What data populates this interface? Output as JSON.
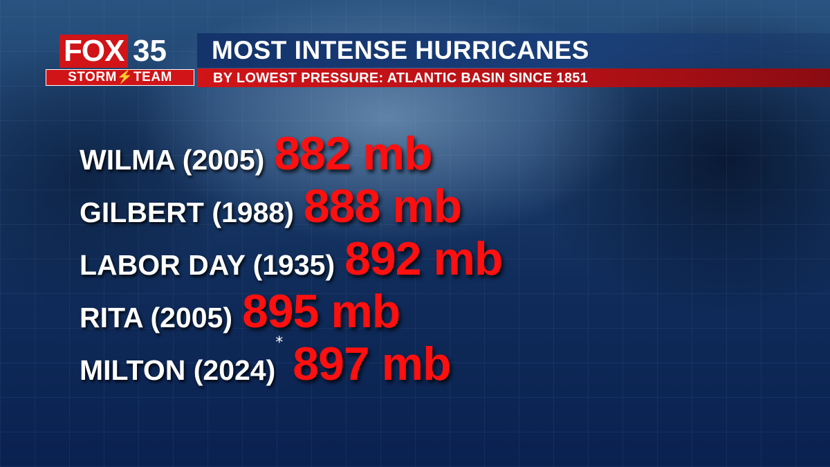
{
  "logo": {
    "brand": "FOX",
    "number": "35",
    "team": "STORM⚡TEAM"
  },
  "header": {
    "title": "MOST INTENSE HURRICANES",
    "subtitle": "BY LOWEST PRESSURE: ATLANTIC BASIN SINCE 1851"
  },
  "rows": [
    {
      "name": "WILMA (2005)",
      "value": "882 mb",
      "mark": ""
    },
    {
      "name": "GILBERT (1988)",
      "value": "888 mb",
      "mark": ""
    },
    {
      "name": "LABOR DAY (1935)",
      "value": "892 mb",
      "mark": ""
    },
    {
      "name": "RITA (2005)",
      "value": "895 mb",
      "mark": ""
    },
    {
      "name": "MILTON (2024)",
      "value": "897 mb",
      "mark": "*"
    }
  ],
  "colors": {
    "accent_red": "#ff1010",
    "bar_blue": "#14336a",
    "bar_red": "#d01418"
  }
}
